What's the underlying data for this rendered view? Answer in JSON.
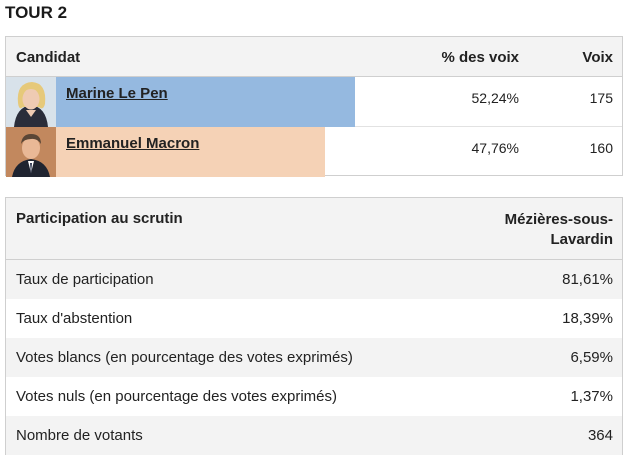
{
  "round": {
    "title": "TOUR 2"
  },
  "results": {
    "headers": {
      "candidate": "Candidat",
      "percent": "% des voix",
      "votes": "Voix"
    },
    "candidates": [
      {
        "name": "Marine Le Pen",
        "percent": "52,24%",
        "votes": "175",
        "share": 0.5224,
        "color": "#95b9e0"
      },
      {
        "name": "Emmanuel Macron",
        "percent": "47,76%",
        "votes": "160",
        "share": 0.4776,
        "color": "#f5d2b6"
      }
    ]
  },
  "participation": {
    "headers": {
      "label": "Participation au scrutin",
      "commune": "Mézières-sous-Lavardin"
    },
    "rows": [
      {
        "label": "Taux de participation",
        "value": "81,61%"
      },
      {
        "label": "Taux d'abstention",
        "value": "18,39%"
      },
      {
        "label": "Votes blancs (en pourcentage des votes exprimés)",
        "value": "6,59%"
      },
      {
        "label": "Votes nuls (en pourcentage des votes exprimés)",
        "value": "1,37%"
      },
      {
        "label": "Nombre de votants",
        "value": "364"
      }
    ]
  }
}
